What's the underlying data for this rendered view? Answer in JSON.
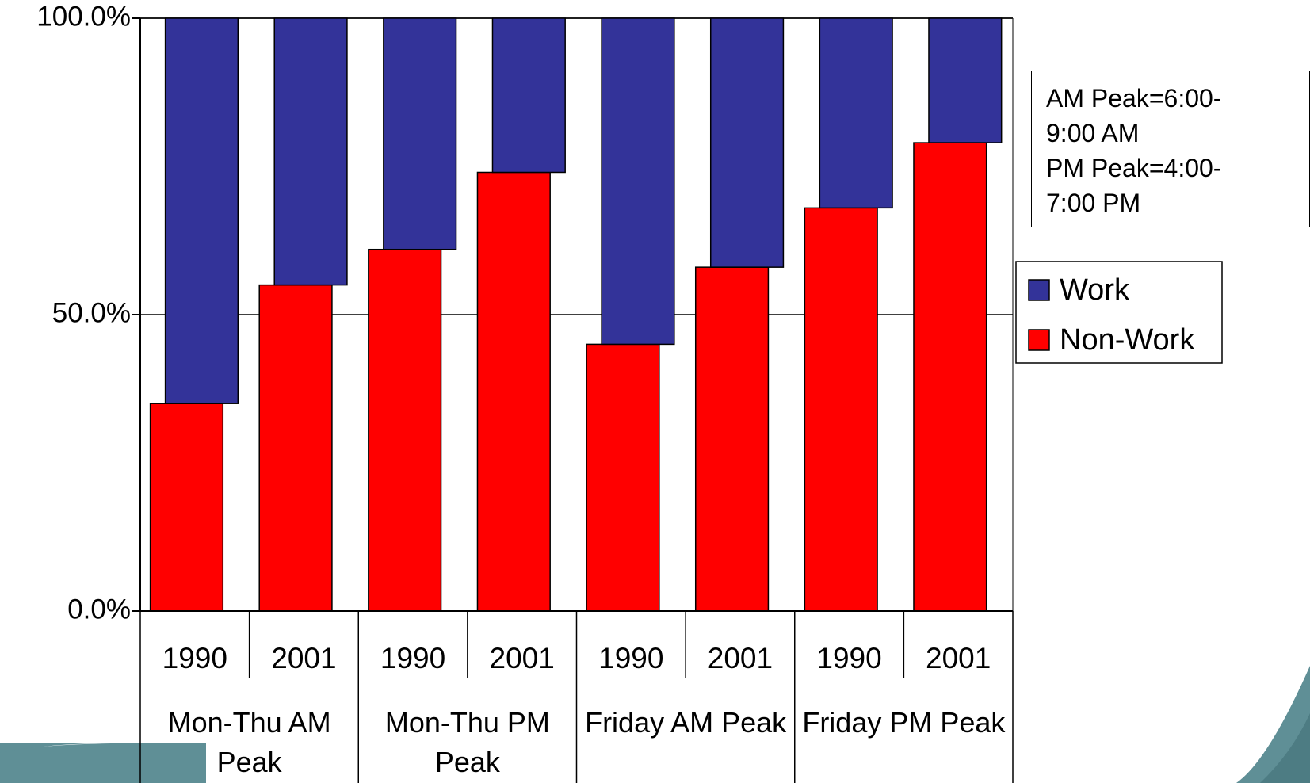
{
  "chart_data": {
    "type": "stacked_bar",
    "categories": [
      "1990",
      "2001",
      "1990",
      "2001",
      "1990",
      "2001",
      "1990",
      "2001"
    ],
    "groups": [
      "Mon-Thu AM Peak",
      "Mon-Thu PM Peak",
      "Friday AM Peak",
      "Friday PM Peak"
    ],
    "series": [
      {
        "name": "Non-Work",
        "color": "#ff0000",
        "values": [
          35,
          55,
          61,
          74,
          45,
          58,
          68,
          79
        ]
      },
      {
        "name": "Work",
        "color": "#333399",
        "values": [
          65,
          45,
          39,
          26,
          55,
          42,
          32,
          21
        ]
      }
    ],
    "ylim": [
      0,
      100
    ],
    "yticks": [
      {
        "value": 0,
        "label": "0.0%"
      },
      {
        "value": 50,
        "label": "50.0%"
      },
      {
        "value": 100,
        "label": "100.0%"
      }
    ],
    "grid": true,
    "legend": "right",
    "annotations": [
      "AM Peak=6:00-9:00 AM",
      "PM Peak=4:00-7:00 PM"
    ]
  }
}
